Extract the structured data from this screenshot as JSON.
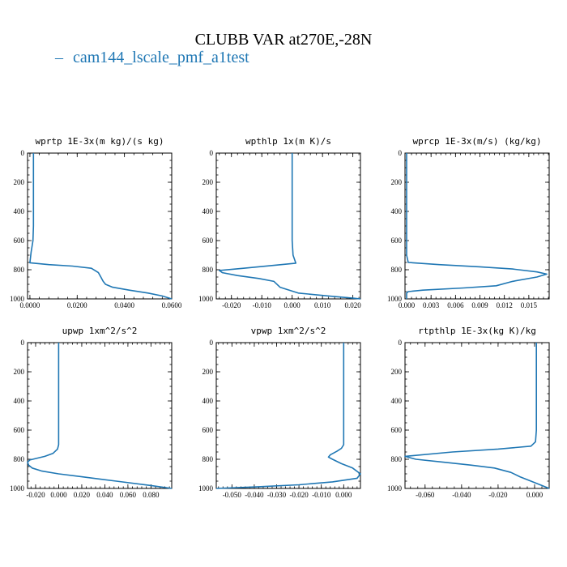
{
  "figure": {
    "title": "CLUBB VAR at270E,-28N",
    "legend_label": "cam144_lscale_pmf_a1test",
    "series_color": "#1f77b4"
  },
  "chart_data": [
    {
      "type": "line",
      "title": "wprtp  1E-3x(m kg)/(s kg)",
      "xlabel": "",
      "ylabel": "",
      "xlim": [
        -0.001,
        0.06
      ],
      "ylim": [
        1000,
        0
      ],
      "x_ticks": [
        0.0,
        0.02,
        0.04,
        0.06
      ],
      "x_tick_labels": [
        "0.0000",
        "0.0200",
        "0.0400",
        "0.0600"
      ],
      "y_ticks": [
        0,
        200,
        400,
        600,
        800,
        1000
      ],
      "y_tick_labels": [
        "0",
        "200",
        "400",
        "600",
        "800",
        "1000"
      ],
      "series": [
        {
          "x": [
            0.0015,
            0.0015,
            0.0015,
            0.0015,
            0.0015,
            0.0015,
            0.0013,
            0.0005,
            0.0,
            0.008,
            0.018,
            0.026,
            0.029,
            0.03,
            0.031,
            0.032,
            0.035,
            0.042,
            0.05,
            0.056,
            0.06
          ],
          "y": [
            0,
            100,
            200,
            300,
            400,
            500,
            600,
            680,
            752,
            765,
            775,
            790,
            820,
            850,
            880,
            900,
            920,
            940,
            960,
            980,
            1000
          ]
        }
      ]
    },
    {
      "type": "line",
      "title": "wpthlp  1x(m K)/s",
      "xlabel": "",
      "ylabel": "",
      "xlim": [
        -0.025,
        0.0225
      ],
      "ylim": [
        1000,
        0
      ],
      "x_ticks": [
        -0.02,
        -0.01,
        0.0,
        0.01,
        0.02
      ],
      "x_tick_labels": [
        "-0.020",
        "-0.010",
        "0.000",
        "0.010",
        "0.020"
      ],
      "y_ticks": [
        0,
        200,
        400,
        600,
        800,
        1000
      ],
      "y_tick_labels": [
        "0",
        "200",
        "400",
        "600",
        "800",
        "1000"
      ],
      "series": [
        {
          "x": [
            0.0,
            0.0,
            0.0,
            0.0,
            0.0,
            0.0,
            0.0,
            0.0003,
            0.0012,
            -0.006,
            -0.016,
            -0.024,
            -0.023,
            -0.018,
            -0.011,
            -0.006,
            -0.004,
            0.002,
            0.012,
            0.02,
            0.0225
          ],
          "y": [
            0,
            100,
            200,
            300,
            400,
            500,
            600,
            700,
            755,
            770,
            790,
            805,
            820,
            840,
            860,
            880,
            920,
            960,
            980,
            995,
            1000
          ]
        }
      ]
    },
    {
      "type": "line",
      "title": "wprcp  1E-3x(m/s) (kg/kg)",
      "xlabel": "",
      "ylabel": "",
      "xlim": [
        -0.0002,
        0.0175
      ],
      "ylim": [
        1000,
        0
      ],
      "x_ticks": [
        0.0,
        0.003,
        0.006,
        0.009,
        0.012,
        0.015
      ],
      "x_tick_labels": [
        "0.000",
        "0.003",
        "0.006",
        "0.009",
        "0.012",
        "0.015"
      ],
      "y_ticks": [
        0,
        200,
        400,
        600,
        800,
        1000
      ],
      "y_tick_labels": [
        "0",
        "200",
        "400",
        "600",
        "800",
        "1000"
      ],
      "series": [
        {
          "x": [
            0.0,
            0.0,
            0.0,
            0.0,
            0.0,
            0.0,
            0.0,
            0.0,
            0.0002,
            0.004,
            0.009,
            0.013,
            0.016,
            0.0172,
            0.016,
            0.013,
            0.011,
            0.007,
            0.002,
            0.0002,
            0.0,
            0.0
          ],
          "y": [
            0,
            100,
            200,
            300,
            400,
            500,
            600,
            700,
            750,
            765,
            780,
            795,
            815,
            830,
            850,
            880,
            910,
            925,
            940,
            950,
            960,
            1000
          ]
        }
      ]
    },
    {
      "type": "line",
      "title": "upwp  1xm^2/s^2",
      "xlabel": "",
      "ylabel": "",
      "xlim": [
        -0.027,
        0.098
      ],
      "ylim": [
        1000,
        0
      ],
      "x_ticks": [
        -0.02,
        0.0,
        0.02,
        0.04,
        0.06,
        0.08
      ],
      "x_tick_labels": [
        "-0.020",
        "0.000",
        "0.020",
        "0.040",
        "0.060",
        "0.080"
      ],
      "y_ticks": [
        0,
        200,
        400,
        600,
        800,
        1000
      ],
      "y_tick_labels": [
        "0",
        "200",
        "400",
        "600",
        "800",
        "1000"
      ],
      "series": [
        {
          "x": [
            0.0,
            0.0,
            0.0,
            0.0,
            0.0,
            0.0,
            0.0,
            0.0,
            -0.001,
            -0.005,
            -0.012,
            -0.02,
            -0.025,
            -0.027,
            -0.026,
            -0.023,
            -0.015,
            0.0,
            0.02,
            0.05,
            0.08,
            0.098
          ],
          "y": [
            0,
            100,
            200,
            300,
            400,
            500,
            600,
            700,
            730,
            760,
            780,
            795,
            805,
            820,
            840,
            860,
            880,
            900,
            920,
            950,
            980,
            1000
          ]
        }
      ]
    },
    {
      "type": "line",
      "title": "vpwp  1xm^2/s^2",
      "xlabel": "",
      "ylabel": "",
      "xlim": [
        -0.057,
        0.0075
      ],
      "ylim": [
        1000,
        0
      ],
      "x_ticks": [
        -0.05,
        -0.04,
        -0.03,
        -0.02,
        -0.01,
        0.0
      ],
      "x_tick_labels": [
        "-0.050",
        "-0.040",
        "-0.030",
        "-0.020",
        "-0.010",
        "0.000"
      ],
      "y_ticks": [
        0,
        200,
        400,
        600,
        800,
        1000
      ],
      "y_tick_labels": [
        "0",
        "200",
        "400",
        "600",
        "800",
        "1000"
      ],
      "series": [
        {
          "x": [
            0.0,
            0.0,
            0.0,
            0.0,
            0.0,
            0.0,
            0.0,
            0.0,
            -0.001,
            -0.003,
            -0.006,
            -0.0068,
            -0.005,
            -0.001,
            0.004,
            0.0075,
            0.006,
            -0.005,
            -0.02,
            -0.04,
            -0.057
          ],
          "y": [
            0,
            100,
            200,
            300,
            400,
            500,
            600,
            700,
            725,
            745,
            770,
            785,
            800,
            830,
            860,
            900,
            930,
            955,
            975,
            990,
            1000
          ]
        }
      ]
    },
    {
      "type": "line",
      "title": "rtpthlp  1E-3x(kg K)/kg",
      "xlabel": "",
      "ylabel": "",
      "xlim": [
        -0.071,
        0.008
      ],
      "ylim": [
        1000,
        0
      ],
      "x_ticks": [
        -0.06,
        -0.04,
        -0.02,
        0.0
      ],
      "x_tick_labels": [
        "-0.060",
        "-0.040",
        "-0.020",
        "0.000"
      ],
      "y_ticks": [
        0,
        200,
        400,
        600,
        800,
        1000
      ],
      "y_tick_labels": [
        "0",
        "200",
        "400",
        "600",
        "800",
        "1000"
      ],
      "series": [
        {
          "x": [
            0.001,
            0.001,
            0.001,
            0.001,
            0.001,
            0.001,
            0.001,
            0.0005,
            -0.002,
            -0.02,
            -0.045,
            -0.071,
            -0.065,
            -0.05,
            -0.035,
            -0.022,
            -0.013,
            -0.008,
            -0.002,
            0.004,
            0.008
          ],
          "y": [
            0,
            100,
            200,
            300,
            400,
            500,
            600,
            680,
            710,
            730,
            750,
            780,
            800,
            820,
            840,
            860,
            890,
            920,
            950,
            980,
            1000
          ]
        }
      ]
    }
  ]
}
